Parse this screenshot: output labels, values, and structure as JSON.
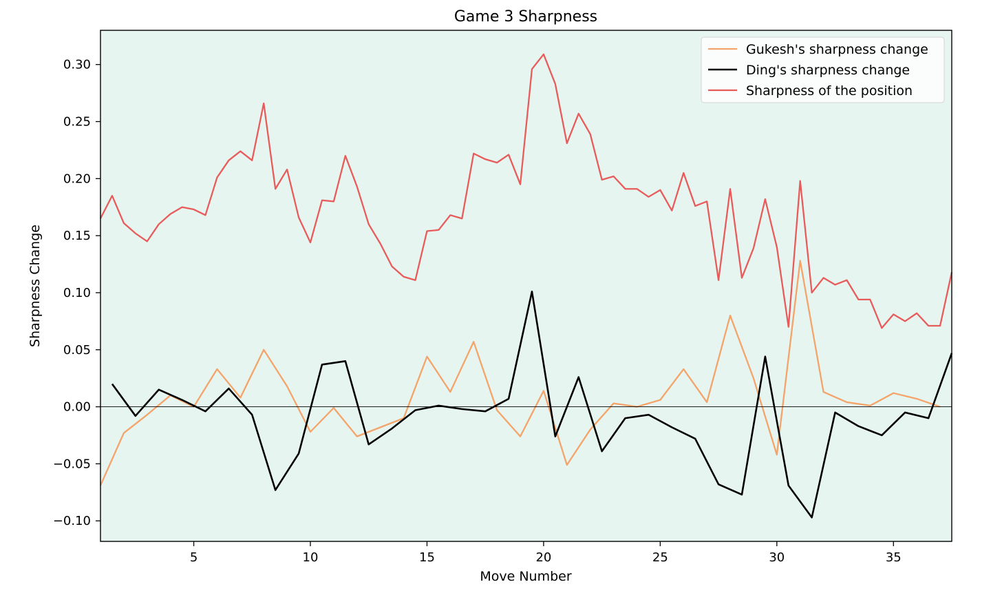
{
  "chart_data": {
    "type": "line",
    "title": "Game 3 Sharpness",
    "xlabel": "Move Number",
    "ylabel": "Sharpness Change",
    "xlim": [
      1,
      37.5
    ],
    "ylim": [
      -0.118,
      0.33
    ],
    "xticks": [
      5,
      10,
      15,
      20,
      25,
      30,
      35
    ],
    "xtick_labels": [
      "5",
      "10",
      "15",
      "20",
      "25",
      "30",
      "35"
    ],
    "yticks": [
      -0.1,
      -0.05,
      0.0,
      0.05,
      0.1,
      0.15,
      0.2,
      0.25,
      0.3
    ],
    "ytick_labels": [
      "−0.10",
      "−0.05",
      "0.00",
      "0.05",
      "0.10",
      "0.15",
      "0.20",
      "0.25",
      "0.30"
    ],
    "background": "#e6f5ef",
    "grid": false,
    "zero_line": true,
    "legend_position": "top-right",
    "series": [
      {
        "name": "Gukesh's sharpness change",
        "color": "#f4a46a",
        "x": [
          1,
          2,
          3,
          4,
          5,
          6,
          7,
          8,
          9,
          10,
          11,
          12,
          13,
          14,
          15,
          16,
          17,
          18,
          19,
          20,
          21,
          22,
          23,
          24,
          25,
          26,
          27,
          28,
          29,
          30,
          31,
          32,
          33,
          34,
          35,
          36,
          37
        ],
        "values": [
          -0.069,
          -0.023,
          -0.007,
          0.01,
          0.0,
          0.033,
          0.008,
          0.05,
          0.018,
          -0.022,
          -0.001,
          -0.026,
          -0.018,
          -0.01,
          0.044,
          0.013,
          0.057,
          -0.003,
          -0.026,
          0.014,
          -0.051,
          -0.02,
          0.003,
          0.0,
          0.006,
          0.033,
          0.004,
          0.08,
          0.025,
          -0.042,
          0.128,
          0.013,
          0.004,
          0.001,
          0.012,
          0.007,
          0.0
        ]
      },
      {
        "name": "Ding's sharpness change",
        "color": "#000000",
        "x": [
          1.5,
          2.5,
          3.5,
          4.5,
          5.5,
          6.5,
          7.5,
          8.5,
          9.5,
          10.5,
          11.5,
          12.5,
          13.5,
          14.5,
          15.5,
          16.5,
          17.5,
          18.5,
          19.5,
          20.5,
          21.5,
          22.5,
          23.5,
          24.5,
          25.5,
          26.5,
          27.5,
          28.5,
          29.5,
          30.5,
          31.5,
          32.5,
          33.5,
          34.5,
          35.5,
          36.5,
          37.5
        ],
        "values": [
          0.02,
          -0.008,
          0.015,
          0.006,
          -0.004,
          0.016,
          -0.007,
          -0.073,
          -0.041,
          0.037,
          0.04,
          -0.033,
          -0.019,
          -0.003,
          0.001,
          -0.002,
          -0.004,
          0.007,
          0.101,
          -0.026,
          0.026,
          -0.039,
          -0.01,
          -0.007,
          -0.018,
          -0.028,
          -0.068,
          -0.077,
          0.044,
          -0.069,
          -0.097,
          -0.005,
          -0.017,
          -0.025,
          -0.005,
          -0.01,
          0.047
        ]
      },
      {
        "name": "Sharpness of the position",
        "color": "#e85b5b",
        "x": [
          1,
          1.5,
          2,
          2.5,
          3,
          3.5,
          4,
          4.5,
          5,
          5.5,
          6,
          6.5,
          7,
          7.5,
          8,
          8.5,
          9,
          9.5,
          10,
          10.5,
          11,
          11.5,
          12,
          12.5,
          13,
          13.5,
          14,
          14.5,
          15,
          15.5,
          16,
          16.5,
          17,
          17.5,
          18,
          18.5,
          19,
          19.5,
          20,
          20.5,
          21,
          21.5,
          22,
          22.5,
          23,
          23.5,
          24,
          24.5,
          25,
          25.5,
          26,
          26.5,
          27,
          27.5,
          28,
          28.5,
          29,
          29.5,
          30,
          30.5,
          31,
          31.5,
          32,
          32.5,
          33,
          33.5,
          34,
          34.5,
          35,
          35.5,
          36,
          36.5,
          37,
          37.5
        ],
        "values": [
          0.165,
          0.185,
          0.161,
          0.152,
          0.145,
          0.16,
          0.169,
          0.175,
          0.173,
          0.168,
          0.201,
          0.216,
          0.224,
          0.216,
          0.266,
          0.191,
          0.208,
          0.166,
          0.144,
          0.181,
          0.18,
          0.22,
          0.193,
          0.16,
          0.143,
          0.123,
          0.114,
          0.111,
          0.154,
          0.155,
          0.168,
          0.165,
          0.222,
          0.217,
          0.214,
          0.221,
          0.195,
          0.296,
          0.309,
          0.283,
          0.231,
          0.257,
          0.239,
          0.199,
          0.202,
          0.191,
          0.191,
          0.184,
          0.19,
          0.172,
          0.205,
          0.176,
          0.18,
          0.111,
          0.191,
          0.113,
          0.139,
          0.182,
          0.14,
          0.07,
          0.198,
          0.1,
          0.113,
          0.107,
          0.111,
          0.094,
          0.094,
          0.069,
          0.081,
          0.075,
          0.082,
          0.071,
          0.071,
          0.118
        ]
      }
    ]
  }
}
